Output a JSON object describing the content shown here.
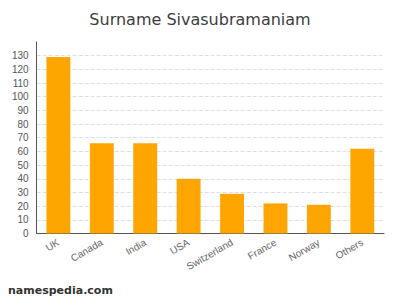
{
  "chart_data": {
    "type": "bar",
    "title": "Surname Sivasubramaniam",
    "categories": [
      "UK",
      "Canada",
      "India",
      "USA",
      "Switzerland",
      "France",
      "Norway",
      "Others"
    ],
    "values": [
      129,
      66,
      66,
      40,
      29,
      22,
      21,
      62
    ],
    "color": "#FFA500",
    "ylim": [
      0,
      140
    ],
    "yticks": [
      0,
      10,
      20,
      30,
      40,
      50,
      60,
      70,
      80,
      90,
      100,
      110,
      120,
      130
    ],
    "grid": true,
    "annotation": "namespedia.com"
  }
}
